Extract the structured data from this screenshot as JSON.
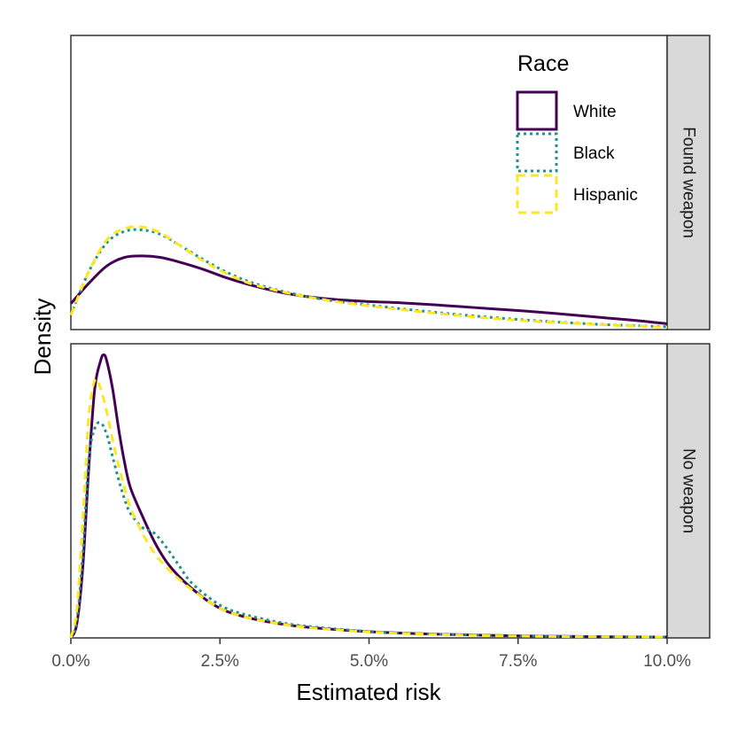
{
  "chart_data": {
    "type": "line",
    "subtype": "density",
    "xlabel": "Estimated risk",
    "ylabel": "Density",
    "xlim": [
      0,
      10
    ],
    "x_ticks": [
      0,
      2.5,
      5,
      7.5,
      10
    ],
    "x_tick_labels": [
      "0.0%",
      "2.5%",
      "5.0%",
      "7.5%",
      "10.0%"
    ],
    "legend": {
      "title": "Race",
      "position": "top-right inside top panel",
      "entries": [
        {
          "name": "White",
          "color": "#440154",
          "linetype": "solid"
        },
        {
          "name": "Black",
          "color": "#21908C",
          "linetype": "dotted"
        },
        {
          "name": "Hispanic",
          "color": "#FDE725",
          "linetype": "dashed"
        }
      ]
    },
    "panels": [
      {
        "label": "Found weapon",
        "ylim": [
          0,
          1
        ],
        "series": [
          {
            "name": "White",
            "x": [
              0,
              0.3,
              0.6,
              0.9,
              1.2,
              1.5,
              1.8,
              2.2,
              2.6,
              3.0,
              3.5,
              4.0,
              4.5,
              5.0,
              5.5,
              6.0,
              6.5,
              7.0,
              7.5,
              8.0,
              8.5,
              9.0,
              9.5,
              10.0
            ],
            "y": [
              0.09,
              0.16,
              0.22,
              0.25,
              0.255,
              0.25,
              0.235,
              0.21,
              0.18,
              0.155,
              0.13,
              0.113,
              0.103,
              0.097,
              0.093,
              0.087,
              0.08,
              0.073,
              0.066,
              0.058,
              0.049,
              0.04,
              0.031,
              0.02
            ]
          },
          {
            "name": "Black",
            "x": [
              0,
              0.3,
              0.6,
              0.9,
              1.2,
              1.5,
              1.8,
              2.2,
              2.6,
              3.0,
              3.5,
              4.0,
              4.5,
              5.0,
              5.5,
              6.0,
              6.5,
              7.0,
              7.5,
              8.0,
              8.5,
              9.0,
              9.5,
              10.0
            ],
            "y": [
              0.05,
              0.2,
              0.3,
              0.34,
              0.345,
              0.33,
              0.295,
              0.245,
              0.2,
              0.165,
              0.135,
              0.113,
              0.097,
              0.085,
              0.073,
              0.062,
              0.052,
              0.043,
              0.035,
              0.028,
              0.022,
              0.017,
              0.013,
              0.01
            ]
          },
          {
            "name": "Hispanic",
            "x": [
              0,
              0.3,
              0.6,
              0.9,
              1.2,
              1.5,
              1.8,
              2.2,
              2.6,
              3.0,
              3.5,
              4.0,
              4.5,
              5.0,
              5.5,
              6.0,
              6.5,
              7.0,
              7.5,
              8.0,
              8.5,
              9.0,
              9.5,
              10.0
            ],
            "y": [
              0.05,
              0.2,
              0.31,
              0.35,
              0.355,
              0.335,
              0.295,
              0.24,
              0.195,
              0.16,
              0.133,
              0.112,
              0.095,
              0.082,
              0.07,
              0.059,
              0.049,
              0.04,
              0.032,
              0.026,
              0.021,
              0.016,
              0.012,
              0.008
            ]
          }
        ]
      },
      {
        "label": "No weapon",
        "ylim": [
          0,
          1
        ],
        "series": [
          {
            "name": "White",
            "x": [
              0,
              0.1,
              0.2,
              0.3,
              0.4,
              0.5,
              0.55,
              0.6,
              0.7,
              0.8,
              0.9,
              1.0,
              1.2,
              1.4,
              1.6,
              1.8,
              2.0,
              2.3,
              2.6,
              3.0,
              3.5,
              4.0,
              5.0,
              6.0,
              7.0,
              8.0,
              9.0,
              10.0
            ],
            "y": [
              0.0,
              0.05,
              0.25,
              0.6,
              0.88,
              0.98,
              1.0,
              0.98,
              0.88,
              0.74,
              0.62,
              0.53,
              0.43,
              0.34,
              0.27,
              0.22,
              0.18,
              0.13,
              0.095,
              0.07,
              0.05,
              0.037,
              0.022,
              0.014,
              0.009,
              0.006,
              0.004,
              0.003
            ]
          },
          {
            "name": "Black",
            "x": [
              0,
              0.1,
              0.2,
              0.3,
              0.4,
              0.5,
              0.6,
              0.7,
              0.8,
              0.9,
              1.0,
              1.2,
              1.4,
              1.6,
              1.8,
              2.0,
              2.3,
              2.6,
              3.0,
              3.5,
              4.0,
              5.0,
              6.0,
              7.0,
              8.0,
              9.0,
              10.0
            ],
            "y": [
              0.0,
              0.06,
              0.3,
              0.63,
              0.74,
              0.76,
              0.72,
              0.64,
              0.56,
              0.49,
              0.44,
              0.39,
              0.37,
              0.32,
              0.26,
              0.2,
              0.145,
              0.105,
              0.078,
              0.055,
              0.04,
              0.023,
              0.014,
              0.009,
              0.006,
              0.004,
              0.003
            ]
          },
          {
            "name": "Hispanic",
            "x": [
              0,
              0.1,
              0.2,
              0.3,
              0.4,
              0.5,
              0.6,
              0.7,
              0.8,
              0.9,
              1.0,
              1.2,
              1.4,
              1.6,
              1.8,
              2.0,
              2.3,
              2.6,
              3.0,
              3.5,
              4.0,
              5.0,
              6.0,
              7.0,
              8.0,
              9.0,
              10.0
            ],
            "y": [
              0.0,
              0.1,
              0.42,
              0.78,
              0.91,
              0.88,
              0.8,
              0.7,
              0.61,
              0.53,
              0.46,
              0.37,
              0.3,
              0.25,
              0.21,
              0.175,
              0.13,
              0.095,
              0.07,
              0.05,
              0.036,
              0.021,
              0.013,
              0.008,
              0.005,
              0.004,
              0.003
            ]
          }
        ]
      }
    ]
  }
}
